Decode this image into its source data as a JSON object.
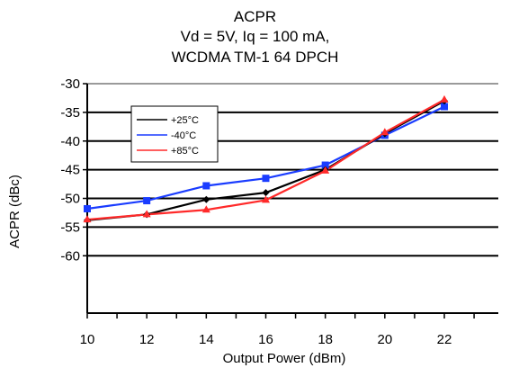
{
  "chart_data": {
    "type": "line",
    "title": [
      "ACPR",
      "Vd = 5V, Iq = 100 mA,",
      "WCDMA TM-1 64 DPCH"
    ],
    "xlabel": "Output Power (dBm)",
    "ylabel": "ACPR (dBc)",
    "x": [
      10,
      12,
      14,
      16,
      18,
      20,
      22
    ],
    "xlim": [
      10,
      22
    ],
    "ylim": [
      -70,
      -30
    ],
    "xticks": [
      10,
      12,
      14,
      16,
      18,
      20,
      22
    ],
    "yticks": [
      -30,
      -35,
      -40,
      -45,
      -50,
      -55,
      -60
    ],
    "grid": "horizontal",
    "legend_position": "top-left",
    "series": [
      {
        "name": "+25°C",
        "color": "#000000",
        "marker": "diamond",
        "values": [
          -53.8,
          -52.8,
          -50.2,
          -49.0,
          -45.0,
          -38.7,
          -33.0
        ]
      },
      {
        "name": "-40°C",
        "color": "#1a3cff",
        "marker": "square",
        "values": [
          -51.8,
          -50.4,
          -47.8,
          -46.5,
          -44.2,
          -39.0,
          -34.0
        ]
      },
      {
        "name": "+85°C",
        "color": "#ff2a2a",
        "marker": "triangle",
        "values": [
          -53.7,
          -52.8,
          -52.0,
          -50.3,
          -45.2,
          -38.5,
          -32.8
        ]
      }
    ]
  }
}
